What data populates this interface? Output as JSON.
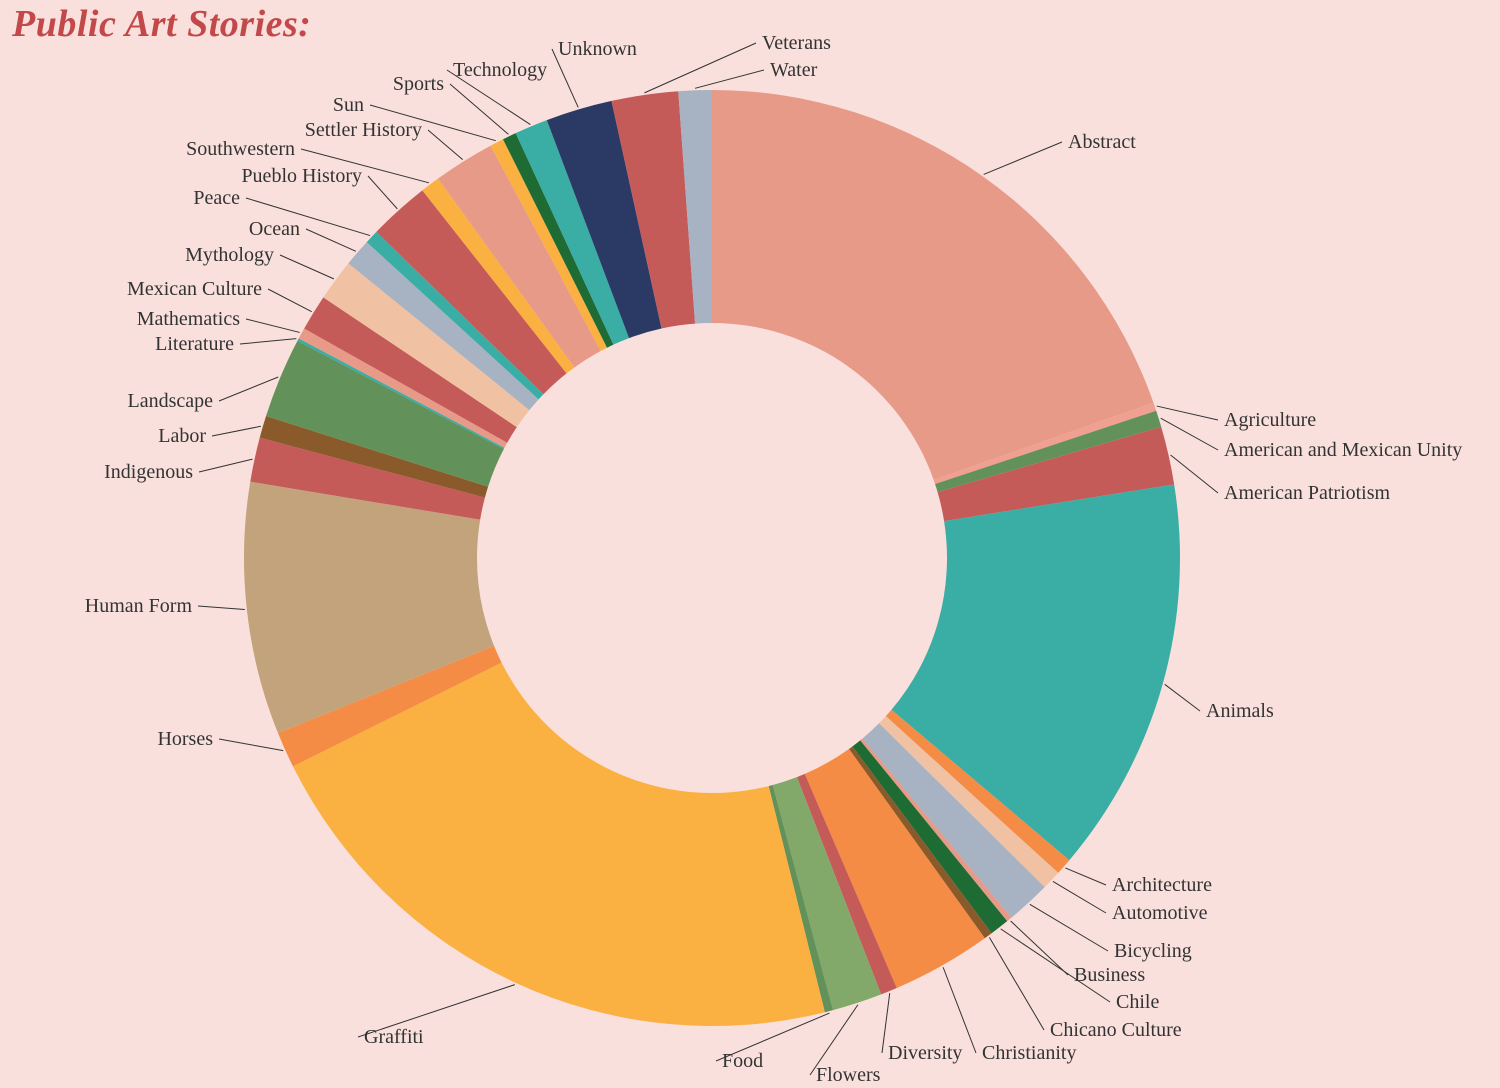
{
  "title": "Public Art Stories:",
  "chart_data": {
    "type": "donut",
    "title": "Public Art Stories:",
    "start_angle_deg": 0,
    "slices": [
      {
        "label": "Abstract",
        "value": 20.5,
        "color": "#e89a88"
      },
      {
        "label": "Agriculture",
        "value": 0.3,
        "color": "#f0a090"
      },
      {
        "label": "American and Mexican Unity",
        "value": 0.6,
        "color": "#62925a"
      },
      {
        "label": "American Patriotism",
        "value": 2.1,
        "color": "#c55b59"
      },
      {
        "label": "Animals",
        "value": 14.3,
        "color": "#3aada5"
      },
      {
        "label": "Architecture",
        "value": 0.6,
        "color": "#f58c45"
      },
      {
        "label": "Automotive",
        "value": 0.7,
        "color": "#f0c2a3"
      },
      {
        "label": "Bicycling",
        "value": 1.6,
        "color": "#a7b2c2"
      },
      {
        "label": "Business",
        "value": 0.2,
        "color": "#e89a88"
      },
      {
        "label": "Chile",
        "value": 0.7,
        "color": "#1f6b34"
      },
      {
        "label": "Chicano Culture",
        "value": 0.3,
        "color": "#8a5a2b"
      },
      {
        "label": "Christianity",
        "value": 3.6,
        "color": "#f58c45"
      },
      {
        "label": "Diversity",
        "value": 0.6,
        "color": "#c55b59"
      },
      {
        "label": "Flowers",
        "value": 1.8,
        "color": "#82a86a"
      },
      {
        "label": "Food",
        "value": 0.3,
        "color": "#62925a"
      },
      {
        "label": "Graffiti",
        "value": 22.5,
        "color": "#fbb042"
      },
      {
        "label": "Horses",
        "value": 1.3,
        "color": "#f58c45"
      },
      {
        "label": "Human Form",
        "value": 9.1,
        "color": "#c2a37c"
      },
      {
        "label": "Indigenous",
        "value": 1.6,
        "color": "#c55b59"
      },
      {
        "label": "Labor",
        "value": 0.8,
        "color": "#8a5a2b"
      },
      {
        "label": "Landscape",
        "value": 2.9,
        "color": "#62925a"
      },
      {
        "label": "Literature",
        "value": 0.1,
        "color": "#3aada5"
      },
      {
        "label": "Mathematics",
        "value": 0.4,
        "color": "#e89a88"
      },
      {
        "label": "Mexican Culture",
        "value": 1.3,
        "color": "#c55b59"
      },
      {
        "label": "Mythology",
        "value": 1.5,
        "color": "#f0c2a3"
      },
      {
        "label": "Ocean",
        "value": 1.0,
        "color": "#a7b2c2"
      },
      {
        "label": "Peace",
        "value": 0.5,
        "color": "#3aada5"
      },
      {
        "label": "Pueblo History",
        "value": 2.2,
        "color": "#c55b59"
      },
      {
        "label": "Southwestern",
        "value": 0.7,
        "color": "#fbb042"
      },
      {
        "label": "Settler History",
        "value": 2.2,
        "color": "#e89a88"
      },
      {
        "label": "Sun",
        "value": 0.5,
        "color": "#fbb042"
      },
      {
        "label": "Sports",
        "value": 0.5,
        "color": "#1f6b34"
      },
      {
        "label": "Technology",
        "value": 1.2,
        "color": "#3aada5"
      },
      {
        "label": "Unknown",
        "value": 2.4,
        "color": "#2b3a64"
      },
      {
        "label": "Veterans",
        "value": 2.4,
        "color": "#c55b59"
      },
      {
        "label": "Water",
        "value": 1.2,
        "color": "#a7b2c2"
      }
    ]
  }
}
